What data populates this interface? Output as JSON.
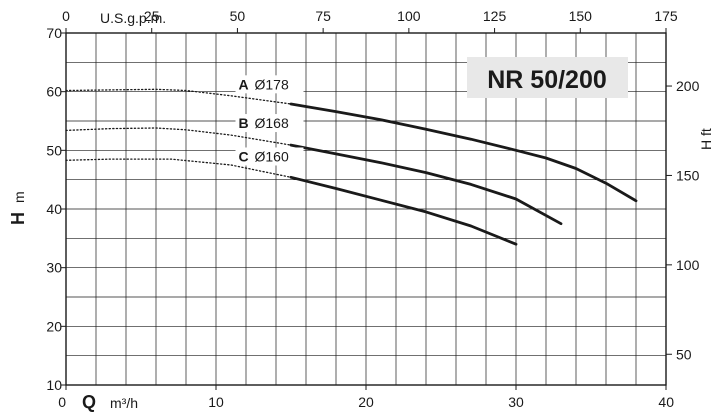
{
  "chart_data": {
    "type": "line",
    "title": "NR 50/200",
    "x_primary": {
      "label_symbol": "Q",
      "unit": "m³/h",
      "range": [
        0,
        40
      ],
      "ticks": [
        0,
        10,
        20,
        30,
        40
      ]
    },
    "x_secondary": {
      "label": "U.S.g.p.m.",
      "range": [
        0,
        175
      ],
      "ticks": [
        0,
        25,
        50,
        75,
        100,
        125,
        150,
        175
      ]
    },
    "y_primary": {
      "label_symbol": "H",
      "unit": "m",
      "range": [
        10,
        70
      ],
      "ticks": [
        10,
        20,
        30,
        40,
        50,
        60,
        70
      ]
    },
    "y_secondary": {
      "label": "H ft",
      "ticks": [
        50,
        100,
        150,
        200
      ]
    },
    "grid": true,
    "series": [
      {
        "id": "A",
        "name": "A",
        "diameter": "Ø178",
        "dotted": [
          [
            0,
            60.2
          ],
          [
            3,
            60.3
          ],
          [
            6,
            60.4
          ],
          [
            8,
            60.2
          ],
          [
            11,
            59.3
          ],
          [
            15,
            57.9
          ]
        ],
        "solid": [
          [
            15,
            57.9
          ],
          [
            18,
            56.6
          ],
          [
            21,
            55.2
          ],
          [
            24,
            53.6
          ],
          [
            27,
            51.9
          ],
          [
            30,
            50.0
          ],
          [
            32,
            48.7
          ],
          [
            34,
            46.9
          ],
          [
            36,
            44.4
          ],
          [
            38,
            41.4
          ]
        ]
      },
      {
        "id": "B",
        "name": "B",
        "diameter": "Ø168",
        "dotted": [
          [
            0,
            53.4
          ],
          [
            3,
            53.7
          ],
          [
            6,
            53.8
          ],
          [
            8,
            53.5
          ],
          [
            11,
            52.6
          ],
          [
            15,
            50.9
          ]
        ],
        "solid": [
          [
            15,
            50.9
          ],
          [
            18,
            49.4
          ],
          [
            21,
            47.9
          ],
          [
            24,
            46.2
          ],
          [
            27,
            44.2
          ],
          [
            30,
            41.7
          ],
          [
            33,
            37.5
          ]
        ]
      },
      {
        "id": "C",
        "name": "C",
        "diameter": "Ø160",
        "dotted": [
          [
            0,
            48.3
          ],
          [
            3,
            48.5
          ],
          [
            7,
            48.5
          ],
          [
            11,
            47.5
          ],
          [
            15,
            45.4
          ]
        ],
        "solid": [
          [
            15,
            45.4
          ],
          [
            18,
            43.5
          ],
          [
            21,
            41.5
          ],
          [
            24,
            39.5
          ],
          [
            27,
            37.1
          ],
          [
            30,
            34.0
          ]
        ]
      }
    ],
    "curve_labels": [
      {
        "letter": "A",
        "diameter": "Ø178",
        "x": 11.5,
        "y": 60.4
      },
      {
        "letter": "B",
        "diameter": "Ø168",
        "x": 11.5,
        "y": 53.8
      },
      {
        "letter": "C",
        "diameter": "Ø160",
        "x": 11.5,
        "y": 48.1
      }
    ]
  }
}
